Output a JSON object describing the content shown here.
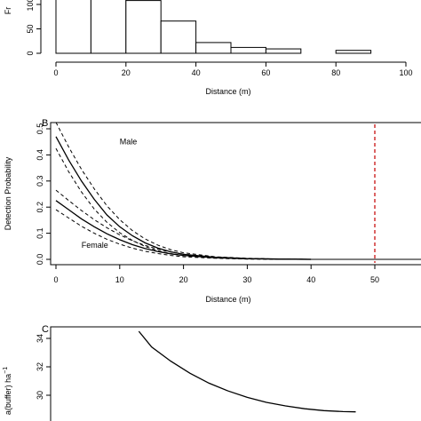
{
  "chart_data": [
    {
      "panel": "A",
      "type": "bar",
      "label": "",
      "xlabel": "Distance (m)",
      "ylabel": "Fr",
      "x_ticks": [
        0,
        20,
        40,
        60,
        80,
        100
      ],
      "y_ticks": [
        0,
        50,
        100
      ],
      "bins": [
        {
          "x0": 0,
          "x1": 10,
          "count": 121
        },
        {
          "x0": 10,
          "x1": 20,
          "count": 121
        },
        {
          "x0": 20,
          "x1": 30,
          "count": 108
        },
        {
          "x0": 30,
          "x1": 40,
          "count": 66
        },
        {
          "x0": 40,
          "x1": 50,
          "count": 22
        },
        {
          "x0": 50,
          "x1": 60,
          "count": 12
        },
        {
          "x0": 60,
          "x1": 70,
          "count": 9
        },
        {
          "x0": 70,
          "x1": 80,
          "count": 0
        },
        {
          "x0": 80,
          "x1": 90,
          "count": 6
        }
      ]
    },
    {
      "panel": "B",
      "type": "line",
      "label": "B",
      "xlabel": "Distance (m)",
      "ylabel": "Detection Probability",
      "x_ticks": [
        0,
        10,
        20,
        30,
        40,
        50
      ],
      "y_ticks": [
        0.0,
        0.1,
        0.2,
        0.3,
        0.4,
        0.5
      ],
      "ylim": [
        0,
        0.52
      ],
      "vline_x": 50,
      "vline_color": "#cc2222",
      "series": [
        {
          "name": "Male",
          "x": [
            0,
            2,
            4,
            6,
            8,
            10,
            12,
            14,
            16,
            18,
            20,
            25,
            30,
            35,
            40
          ],
          "y": [
            0.47,
            0.38,
            0.3,
            0.23,
            0.17,
            0.125,
            0.09,
            0.063,
            0.043,
            0.029,
            0.019,
            0.008,
            0.003,
            0.001,
            0.0
          ]
        },
        {
          "name": "Female",
          "x": [
            0,
            2,
            4,
            6,
            8,
            10,
            12,
            14,
            16,
            18,
            20,
            25,
            30,
            35,
            40
          ],
          "y": [
            0.225,
            0.19,
            0.155,
            0.125,
            0.098,
            0.075,
            0.056,
            0.041,
            0.03,
            0.021,
            0.015,
            0.006,
            0.002,
            0.001,
            0.0
          ]
        }
      ],
      "bands": [
        {
          "x": [
            0,
            2,
            4,
            6,
            8,
            10,
            12,
            14,
            16,
            18,
            20,
            25,
            30,
            35,
            40
          ],
          "y": [
            0.525,
            0.43,
            0.345,
            0.27,
            0.205,
            0.152,
            0.11,
            0.078,
            0.054,
            0.037,
            0.025,
            0.01,
            0.004,
            0.001,
            0.0
          ]
        },
        {
          "x": [
            0,
            2,
            4,
            6,
            8,
            10,
            12,
            14,
            16,
            18,
            20,
            25,
            30,
            35,
            40
          ],
          "y": [
            0.425,
            0.335,
            0.258,
            0.193,
            0.142,
            0.102,
            0.072,
            0.049,
            0.033,
            0.022,
            0.014,
            0.005,
            0.002,
            0.001,
            0.0
          ]
        },
        {
          "x": [
            0,
            2,
            4,
            6,
            8,
            10,
            12,
            14,
            16,
            18,
            20,
            25,
            30,
            35,
            40
          ],
          "y": [
            0.265,
            0.225,
            0.187,
            0.152,
            0.121,
            0.094,
            0.071,
            0.053,
            0.039,
            0.028,
            0.02,
            0.008,
            0.003,
            0.001,
            0.0
          ]
        },
        {
          "x": [
            0,
            2,
            4,
            6,
            8,
            10,
            12,
            14,
            16,
            18,
            20,
            25,
            30,
            35,
            40
          ],
          "y": [
            0.19,
            0.158,
            0.127,
            0.1,
            0.077,
            0.058,
            0.043,
            0.031,
            0.022,
            0.015,
            0.01,
            0.004,
            0.001,
            0.0,
            0.0
          ]
        }
      ],
      "annotations": [
        {
          "text": "Male",
          "x": 10,
          "y": 0.44
        },
        {
          "text": "Female",
          "x": 4,
          "y": 0.045
        }
      ]
    },
    {
      "panel": "C",
      "type": "line",
      "label": "C",
      "xlabel": "",
      "ylabel": "a(buffer) ha",
      "ylabel_sup": "−1",
      "y_ticks": [
        30,
        32,
        34
      ],
      "ylim": [
        28.8,
        34.6
      ],
      "x_data_range": [
        0,
        50
      ],
      "series": [
        {
          "name": "",
          "x": [
            13,
            15,
            18,
            21,
            24,
            27,
            30,
            33,
            36,
            39,
            42,
            45,
            47
          ],
          "y": [
            34.5,
            33.4,
            32.4,
            31.55,
            30.85,
            30.3,
            29.85,
            29.5,
            29.25,
            29.05,
            28.92,
            28.85,
            28.83
          ]
        }
      ]
    }
  ]
}
